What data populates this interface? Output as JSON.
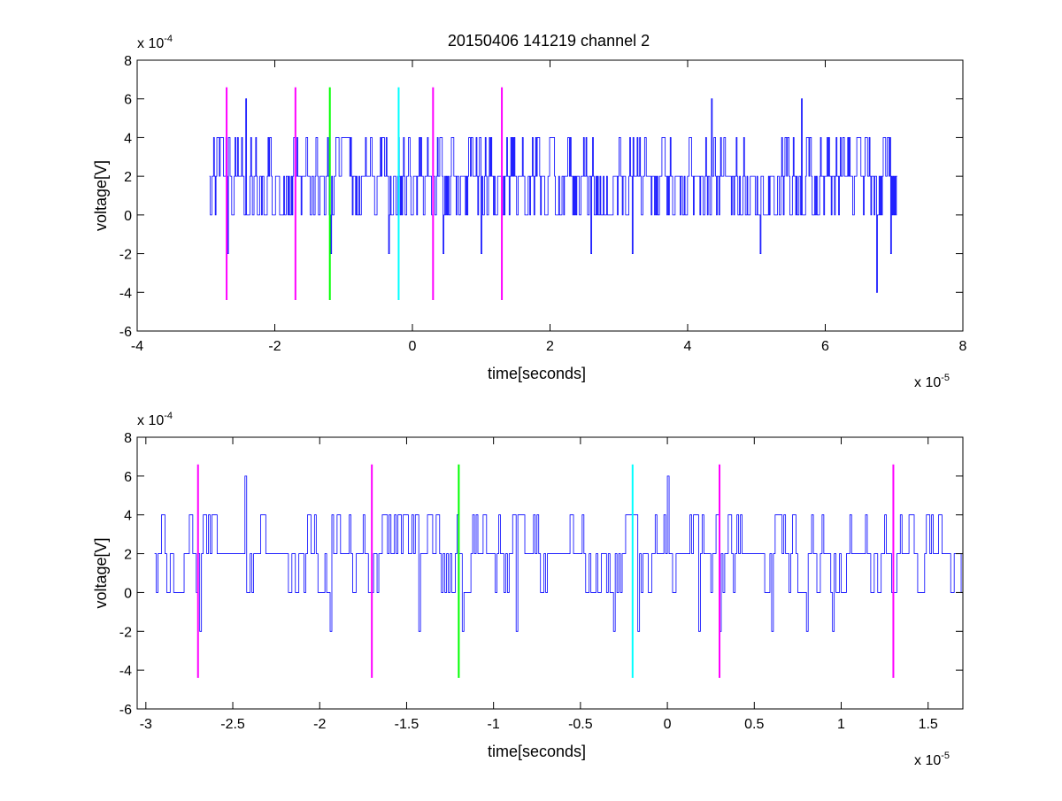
{
  "figure": {
    "title": "20150406 141219 channel 2",
    "background": "#ffffff"
  },
  "chart_data": [
    {
      "type": "line",
      "title": "20150406 141219 channel 2",
      "xlabel": "time[seconds]",
      "ylabel": "voltage[V]",
      "x_exponent_label": {
        "base": "x 10",
        "exp": "-5"
      },
      "y_exponent_label": {
        "base": "x 10",
        "exp": "-4"
      },
      "xlim": [
        -4,
        8
      ],
      "ylim": [
        -6,
        8
      ],
      "xticks": [
        -4,
        -2,
        0,
        2,
        4,
        6,
        8
      ],
      "xtick_labels": [
        "-4",
        "-2",
        "0",
        "2",
        "4",
        "6",
        "8"
      ],
      "yticks": [
        -6,
        -4,
        -2,
        0,
        2,
        4,
        6,
        8
      ],
      "ytick_labels": [
        "-6",
        "-4",
        "-2",
        "0",
        "2",
        "4",
        "6",
        "8"
      ],
      "grid": false,
      "series": [
        {
          "color": "#0000ff",
          "x_start": -2.95,
          "x_end": 7.05,
          "baseline": 2,
          "levels": [
            0,
            2,
            4
          ],
          "sample_step": 0.012,
          "spikes": [
            {
              "x": -2.68,
              "y": -2
            },
            {
              "x": -2.42,
              "y": 6
            },
            {
              "x": -1.18,
              "y": -2
            },
            {
              "x": -0.35,
              "y": -2
            },
            {
              "x": 0.45,
              "y": -2
            },
            {
              "x": 1.0,
              "y": -2
            },
            {
              "x": 2.6,
              "y": -2
            },
            {
              "x": 3.2,
              "y": -2
            },
            {
              "x": 4.35,
              "y": 6
            },
            {
              "x": 5.05,
              "y": -2
            },
            {
              "x": 5.65,
              "y": 6
            },
            {
              "x": 6.75,
              "y": -4
            },
            {
              "x": 6.95,
              "y": -2
            }
          ]
        }
      ],
      "markers": [
        {
          "x": -2.7,
          "y0": -4.4,
          "y1": 6.6,
          "color": "#ff00ff"
        },
        {
          "x": -1.7,
          "y0": -4.4,
          "y1": 6.6,
          "color": "#ff00ff"
        },
        {
          "x": -1.2,
          "y0": -4.4,
          "y1": 6.6,
          "color": "#00ff00"
        },
        {
          "x": -0.2,
          "y0": -4.4,
          "y1": 6.6,
          "color": "#00ffff"
        },
        {
          "x": 0.3,
          "y0": -4.4,
          "y1": 6.6,
          "color": "#ff00ff"
        },
        {
          "x": 1.3,
          "y0": -4.4,
          "y1": 6.6,
          "color": "#ff00ff"
        }
      ]
    },
    {
      "type": "line",
      "title": "",
      "xlabel": "time[seconds]",
      "ylabel": "voltage[V]",
      "x_exponent_label": {
        "base": "x 10",
        "exp": "-5"
      },
      "y_exponent_label": {
        "base": "x 10",
        "exp": "-4"
      },
      "xlim": [
        -3.05,
        1.7
      ],
      "ylim": [
        -6,
        8
      ],
      "xticks": [
        -3,
        -2.5,
        -2,
        -1.5,
        -1,
        -0.5,
        0,
        0.5,
        1,
        1.5
      ],
      "xtick_labels": [
        "-3",
        "-2.5",
        "-2",
        "-1.5",
        "-1",
        "-0.5",
        "0",
        "0.5",
        "1",
        "1.5"
      ],
      "yticks": [
        -6,
        -4,
        -2,
        0,
        2,
        4,
        6,
        8
      ],
      "ytick_labels": [
        "-6",
        "-4",
        "-2",
        "0",
        "2",
        "4",
        "6",
        "8"
      ],
      "grid": false,
      "series": [
        {
          "color": "#0000ff",
          "x_start": -2.95,
          "x_end": 1.7,
          "baseline": 2,
          "levels": [
            0,
            2,
            4
          ],
          "sample_step": 0.01,
          "flat_segments": [
            {
              "x0": -2.6,
              "x1": -2.45,
              "y": 2
            },
            {
              "x0": -2.32,
              "x1": -2.2,
              "y": 2
            },
            {
              "x0": -0.7,
              "x1": -0.58,
              "y": 2
            },
            {
              "x0": 0.42,
              "x1": 0.55,
              "y": 2
            },
            {
              "x0": 1.05,
              "x1": 1.12,
              "y": 2
            }
          ],
          "spikes": [
            {
              "x": -2.69,
              "y": -2
            },
            {
              "x": -2.43,
              "y": 6
            },
            {
              "x": -1.94,
              "y": -2
            },
            {
              "x": -1.43,
              "y": -2
            },
            {
              "x": -1.18,
              "y": -2
            },
            {
              "x": -0.87,
              "y": -2
            },
            {
              "x": -0.31,
              "y": -2
            },
            {
              "x": -0.17,
              "y": -2
            },
            {
              "x": 0.0,
              "y": 6
            },
            {
              "x": 0.18,
              "y": -2
            },
            {
              "x": 0.6,
              "y": -2
            },
            {
              "x": 0.3,
              "y": -2
            },
            {
              "x": 0.8,
              "y": -2
            },
            {
              "x": 0.95,
              "y": -2
            }
          ]
        }
      ],
      "markers": [
        {
          "x": -2.7,
          "y0": -4.4,
          "y1": 6.6,
          "color": "#ff00ff"
        },
        {
          "x": -1.7,
          "y0": -4.4,
          "y1": 6.6,
          "color": "#ff00ff"
        },
        {
          "x": -1.2,
          "y0": -4.4,
          "y1": 6.6,
          "color": "#00ff00"
        },
        {
          "x": -0.2,
          "y0": -4.4,
          "y1": 6.6,
          "color": "#00ffff"
        },
        {
          "x": 0.3,
          "y0": -4.4,
          "y1": 6.6,
          "color": "#ff00ff"
        },
        {
          "x": 1.3,
          "y0": -4.4,
          "y1": 6.6,
          "color": "#ff00ff"
        }
      ]
    }
  ]
}
